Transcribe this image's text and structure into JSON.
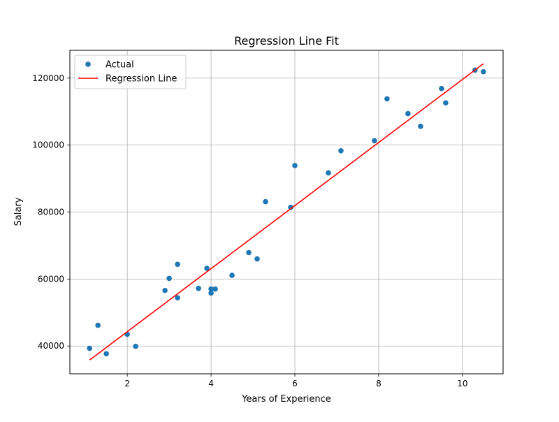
{
  "chart_data": {
    "type": "scatter",
    "title": "Regression Line Fit",
    "xlabel": "Years of Experience",
    "ylabel": "Salary",
    "xlim": [
      0.63,
      10.97
    ],
    "ylim": [
      31700,
      128300
    ],
    "xticks": [
      2,
      4,
      6,
      8,
      10
    ],
    "yticks": [
      40000,
      60000,
      80000,
      100000,
      120000
    ],
    "grid": true,
    "legend_position": "top-left",
    "series": [
      {
        "name": "Actual",
        "kind": "scatter",
        "color": "#1f77b4",
        "points": [
          [
            1.1,
            39300
          ],
          [
            1.3,
            46200
          ],
          [
            1.5,
            37700
          ],
          [
            2.0,
            43500
          ],
          [
            2.2,
            39900
          ],
          [
            2.9,
            56600
          ],
          [
            3.0,
            60200
          ],
          [
            3.2,
            54400
          ],
          [
            3.2,
            64400
          ],
          [
            3.7,
            57200
          ],
          [
            3.9,
            63200
          ],
          [
            4.0,
            55800
          ],
          [
            4.0,
            57000
          ],
          [
            4.1,
            57000
          ],
          [
            4.5,
            61100
          ],
          [
            4.9,
            67900
          ],
          [
            5.1,
            66000
          ],
          [
            5.3,
            83100
          ],
          [
            5.9,
            81400
          ],
          [
            6.0,
            93900
          ],
          [
            6.8,
            91700
          ],
          [
            7.1,
            98300
          ],
          [
            7.9,
            101300
          ],
          [
            8.2,
            113800
          ],
          [
            8.7,
            109400
          ],
          [
            9.0,
            105600
          ],
          [
            9.5,
            116900
          ],
          [
            9.6,
            112600
          ],
          [
            10.3,
            122400
          ],
          [
            10.5,
            121900
          ]
        ]
      },
      {
        "name": "Regression Line",
        "kind": "line",
        "color": "#ff0000",
        "points": [
          [
            1.1,
            35800
          ],
          [
            10.5,
            124300
          ]
        ]
      }
    ]
  }
}
